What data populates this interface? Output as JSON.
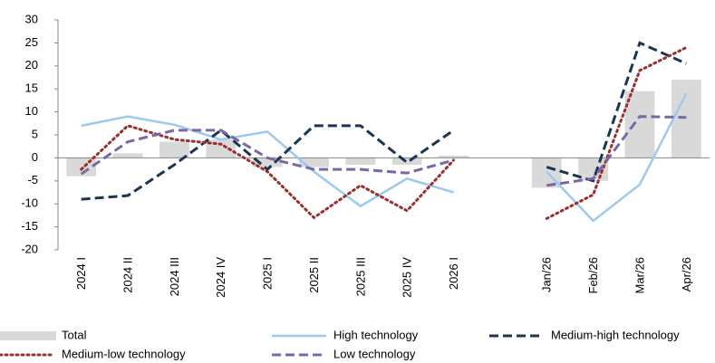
{
  "chart_data": {
    "type": "combo",
    "categories": [
      "2024 I",
      "2024 II",
      "2024 III",
      "2024 IV",
      "2025 I",
      "2025 II",
      "2025 III",
      "2025 IV",
      "2026 I",
      null,
      "Jan/26",
      "Feb/26",
      "Mar/26",
      "Apr/26"
    ],
    "series": [
      {
        "name": "Total",
        "type": "bar",
        "color": "#d9d9d9",
        "values": [
          -4,
          1,
          3.5,
          4,
          -2,
          -2,
          -1.5,
          -1.5,
          0.5,
          null,
          -6.5,
          -5,
          14.5,
          17
        ]
      },
      {
        "name": "High technology",
        "type": "line",
        "line_style": "solid",
        "color": "#9dc9ef",
        "values": [
          7,
          9,
          7.2,
          4,
          5.7,
          -3,
          -10.5,
          -4.5,
          -7.5,
          null,
          -3,
          -13.7,
          -5.8,
          14
        ]
      },
      {
        "name": "Medium-high technology",
        "type": "line",
        "line_style": "dashed",
        "color": "#1c3552",
        "values": [
          -9,
          -8.2,
          -1.5,
          6,
          -2.5,
          7,
          7,
          -1,
          6,
          null,
          -2,
          -5,
          25,
          20.5
        ]
      },
      {
        "name": "Medium-low technology",
        "type": "line",
        "line_style": "dotted",
        "color": "#98302f",
        "values": [
          -2.5,
          7,
          4,
          3,
          -3,
          -13,
          -6,
          -11.5,
          -0.5,
          null,
          -13.2,
          -8,
          19,
          24
        ]
      },
      {
        "name": "Low technology",
        "type": "line",
        "line_style": "dashed",
        "color": "#7a68a6",
        "values": [
          -3.5,
          3.5,
          6,
          6,
          0,
          -2.5,
          -2.5,
          -3.3,
          -0.5,
          null,
          -6,
          -4.5,
          9,
          8.8
        ]
      }
    ],
    "ylim": [
      -20,
      30
    ],
    "yticks": [
      -20,
      -15,
      -10,
      -5,
      0,
      5,
      10,
      15,
      20,
      25,
      30
    ],
    "legend": "bottom"
  }
}
